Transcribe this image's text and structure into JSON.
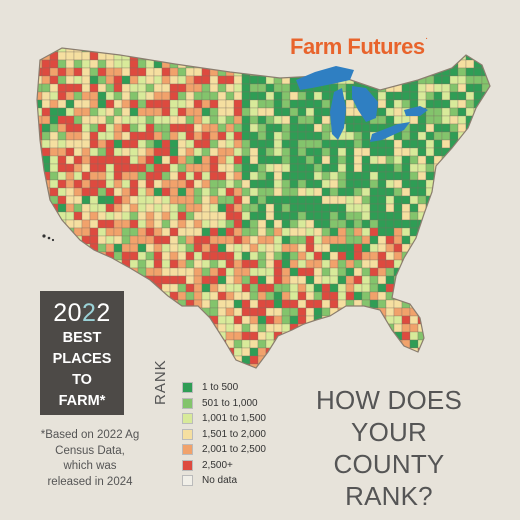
{
  "brand": {
    "name": "Farm Futures",
    "trademark": "."
  },
  "badge": {
    "year_prefix": "20",
    "year_highlight": "2",
    "year_suffix": "2",
    "lines": [
      "BEST",
      "PLACES",
      "TO",
      "FARM*"
    ]
  },
  "footnote": "*Based on 2022 Ag Census Data, which was released in 2024",
  "legend": {
    "title": "RANK",
    "items": [
      {
        "label": "1 to 500",
        "color": "#2f9d55"
      },
      {
        "label": "501 to 1,000",
        "color": "#83c46c"
      },
      {
        "label": "1,001 to 1,500",
        "color": "#d8ea9a"
      },
      {
        "label": "1,501 to 2,000",
        "color": "#f5dfa0"
      },
      {
        "label": "2,001 to 2,500",
        "color": "#f1a26b"
      },
      {
        "label": "2,500+",
        "color": "#dd4a3f"
      },
      {
        "label": "No data",
        "color": "#f1efe8"
      }
    ]
  },
  "question_lines": [
    "HOW DOES",
    "YOUR COUNTY",
    "RANK?"
  ],
  "map_colors": {
    "land": "#cfd9a6",
    "lakes": "#2f7fc2",
    "borders": "#7a6f62"
  }
}
